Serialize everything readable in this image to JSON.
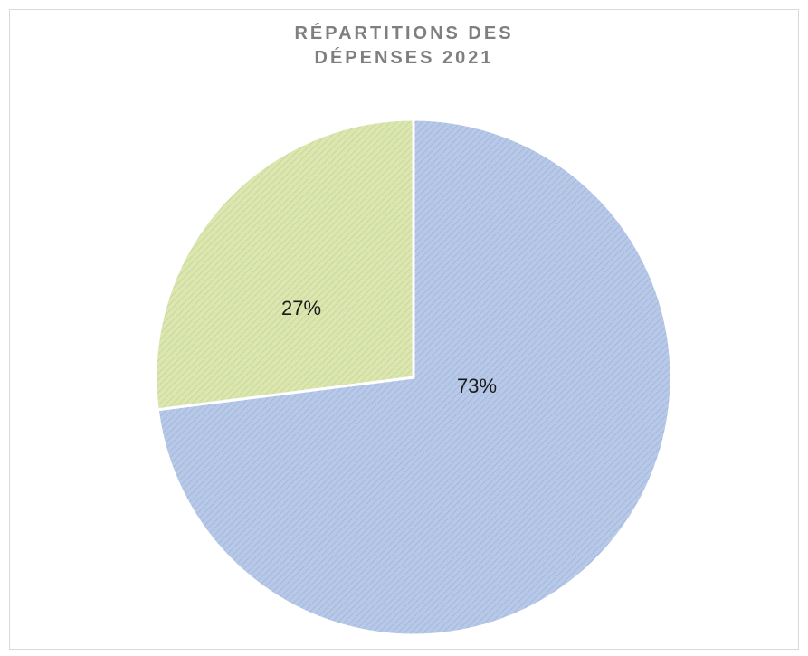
{
  "chart_data": {
    "type": "pie",
    "title_lines": [
      "RÉPARTITIONS DES",
      "DÉPENSES 2021"
    ],
    "slices": [
      {
        "value": 73,
        "label": "73%",
        "color": "#b4c6e7",
        "stroke": "#9db3dc"
      },
      {
        "value": 27,
        "label": "27%",
        "color": "#d7e3a9",
        "stroke": "#c4d490"
      }
    ],
    "legend": "none",
    "start_angle_deg": 0,
    "direction": "clockwise",
    "pattern": "diagonal-hatch"
  }
}
